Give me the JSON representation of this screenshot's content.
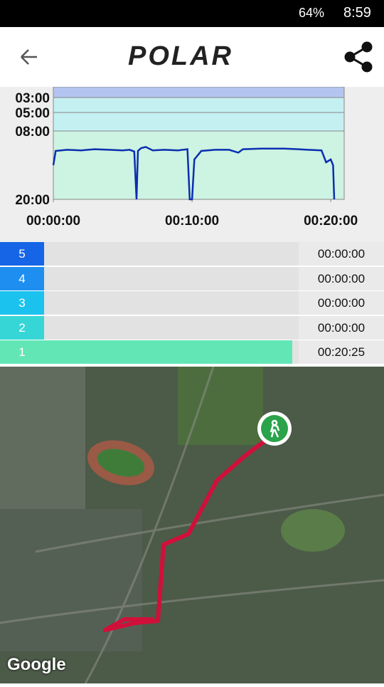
{
  "status_bar": {
    "battery": "64%",
    "time": "8:59"
  },
  "header": {
    "logo": "POLAR"
  },
  "pace_chart": {
    "yticks": [
      {
        "value": 3,
        "label": "03:00"
      },
      {
        "value": 5,
        "label": "05:00"
      },
      {
        "value": 8,
        "label": "08:00"
      },
      {
        "value": 20,
        "label": "20:00"
      }
    ],
    "xticks": [
      {
        "value": 0,
        "label": "00:00:00"
      },
      {
        "value": 600,
        "label": "00:10:00"
      },
      {
        "value": 1200,
        "label": "00:20:00"
      }
    ],
    "xlim": [
      0,
      1258
    ],
    "x": [
      0,
      10,
      60,
      120,
      180,
      240,
      300,
      330,
      350,
      360,
      366,
      380,
      400,
      430,
      480,
      540,
      580,
      590,
      600,
      610,
      640,
      700,
      760,
      800,
      820,
      900,
      1000,
      1060,
      1100,
      1160,
      1180,
      1200,
      1210,
      1215
    ],
    "values": [
      14,
      11.5,
      11.3,
      11.4,
      11.2,
      11.3,
      11.4,
      11.3,
      11.6,
      20,
      11.5,
      11,
      10.8,
      11.4,
      11.3,
      11.4,
      11.2,
      20,
      20,
      13,
      11.5,
      11.3,
      11.3,
      11.8,
      11.2,
      11.1,
      11.1,
      11.2,
      11.3,
      11.4,
      13.5,
      13,
      14,
      20
    ],
    "color": "#0a2fb0"
  },
  "zones": [
    {
      "label": "5",
      "time": "00:00:00",
      "color": "#1565e6"
    },
    {
      "label": "4",
      "time": "00:00:00",
      "color": "#1e8ff0"
    },
    {
      "label": "3",
      "time": "00:00:00",
      "color": "#1cc2ee"
    },
    {
      "label": "2",
      "time": "00:00:00",
      "color": "#36d6d6"
    },
    {
      "label": "1",
      "time": "00:20:25",
      "color": "#63e6b6"
    }
  ],
  "map": {
    "attribution": "Google"
  }
}
